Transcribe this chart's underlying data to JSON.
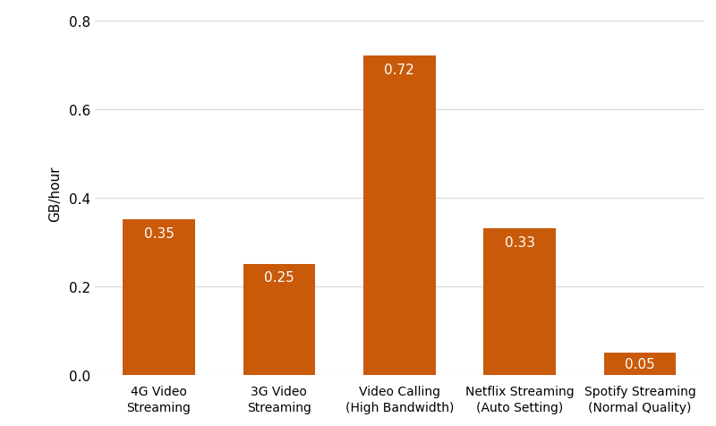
{
  "categories": [
    "4G Video\nStreaming",
    "3G Video\nStreaming",
    "Video Calling\n(High Bandwidth)",
    "Netflix Streaming\n(Auto Setting)",
    "Spotify Streaming\n(Normal Quality)"
  ],
  "values": [
    0.35,
    0.25,
    0.72,
    0.33,
    0.05
  ],
  "bar_color": "#C85A0A",
  "bar_labels": [
    "0.35",
    "0.25",
    "0.72",
    "0.33",
    "0.05"
  ],
  "ylabel": "GB/hour",
  "ylim": [
    0,
    0.82
  ],
  "yticks": [
    0,
    0.2,
    0.4,
    0.6,
    0.8
  ],
  "background_color": "#ffffff",
  "label_color": "#ffffff",
  "label_fontsize": 11,
  "ylabel_fontsize": 11,
  "xtick_fontsize": 10,
  "ytick_fontsize": 11,
  "grid_color": "#d8d8d8",
  "bar_width": 0.6
}
